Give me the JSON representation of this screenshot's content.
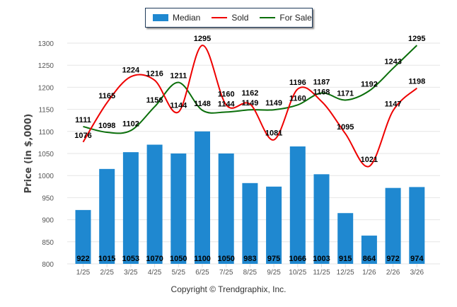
{
  "chart_data": {
    "type": "bar",
    "title": "",
    "xlabel": "",
    "ylabel": "Price (in $,000)",
    "ylim": [
      800,
      1300
    ],
    "yticks": [
      800,
      850,
      900,
      950,
      1000,
      1050,
      1100,
      1150,
      1200,
      1250,
      1300
    ],
    "grid": true,
    "legend_position": "top-center",
    "categories": [
      "1/25",
      "2/25",
      "3/25",
      "4/25",
      "5/25",
      "6/25",
      "7/25",
      "8/25",
      "9/25",
      "10/25",
      "11/25",
      "12/25",
      "1/26",
      "2/26",
      "3/26"
    ],
    "series": [
      {
        "name": "Median",
        "type": "bar",
        "color": "#1f88d0",
        "values": [
          922,
          1015,
          1053,
          1070,
          1050,
          1100,
          1050,
          983,
          975,
          1066,
          1003,
          915,
          864,
          972,
          974
        ]
      },
      {
        "name": "Sold",
        "type": "line",
        "color": "#ee0000",
        "values": [
          1076,
          1165,
          1224,
          1216,
          1144,
          1295,
          1160,
          1162,
          1081,
          1196,
          1168,
          1095,
          1021,
          1147,
          1198
        ]
      },
      {
        "name": "For Sale",
        "type": "line",
        "color": "#0a6e0a",
        "values": [
          1111,
          1098,
          1102,
          1156,
          1211,
          1148,
          1144,
          1149,
          1149,
          1160,
          1187,
          1171,
          1192,
          1243,
          1295
        ]
      }
    ]
  },
  "footer": {
    "copyright": "Copyright © Trendgraphix, Inc."
  }
}
